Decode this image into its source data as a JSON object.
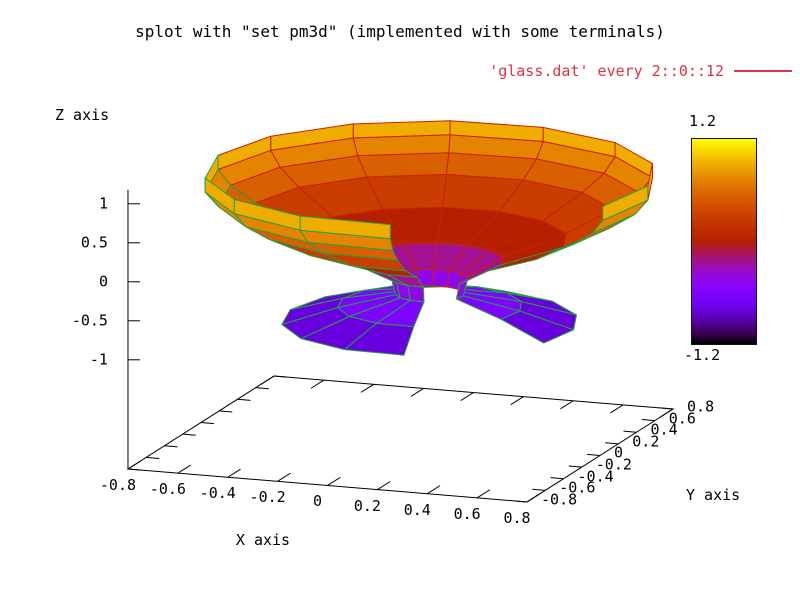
{
  "title": "splot with \"set pm3d\" (implemented with some terminals)",
  "legend": {
    "label": "'glass.dat' every 2::0::12",
    "color": "#dd3344"
  },
  "axes": {
    "x": {
      "label": "X axis",
      "ticks": [
        "-0.8",
        "-0.6",
        "-0.4",
        "-0.2",
        "0",
        "0.2",
        "0.4",
        "0.6",
        "0.8"
      ]
    },
    "y": {
      "label": "Y axis",
      "ticks": [
        "-0.8",
        "-0.6",
        "-0.4",
        "-0.2",
        "0",
        "0.2",
        "0.4",
        "0.6",
        "0.8"
      ]
    },
    "z": {
      "label": "Z axis",
      "ticks": [
        "-1",
        "-0.5",
        "0",
        "0.5",
        "1"
      ]
    }
  },
  "colorbar": {
    "max_label": "1.2",
    "min_label": "-1.2",
    "range": [
      -1.2,
      1.2
    ]
  },
  "chart_data": {
    "type": "surface-3d-pm3d",
    "source_label": "'glass.dat' every 2::0::12",
    "x_range": [
      -0.8,
      0.8
    ],
    "y_range": [
      -0.8,
      0.8
    ],
    "z_tick_range": [
      -1,
      1
    ],
    "color_range": [
      -1.2,
      1.2
    ],
    "palette": "gnuplot rgbformulae 7,5,15: R=sqrt(t), G=t^3, B=sin(2*pi*t)",
    "mesh_line_colors": {
      "top_side": "#cc2200",
      "bottom_side": "#22a044"
    },
    "surface_of_revolution": {
      "center_offset": {
        "x": 0.1,
        "y": 0.05
      },
      "profile_rz": [
        {
          "z": 1.0,
          "r": 0.85
        },
        {
          "z": 0.82,
          "r": 0.85
        },
        {
          "z": 0.63,
          "r": 0.8
        },
        {
          "z": 0.43,
          "r": 0.7
        },
        {
          "z": 0.15,
          "r": 0.52
        },
        {
          "z": -0.12,
          "r": 0.28
        },
        {
          "z": -0.35,
          "r": 0.145
        },
        {
          "z": -0.55,
          "r": 0.13
        },
        {
          "z": -0.7,
          "r": 0.35
        },
        {
          "z": -0.9,
          "r": 0.56
        }
      ],
      "theta_start_deg": -20,
      "theta_step_deg": 25,
      "meridian_count": 13,
      "gap_note": "missing ~60 deg sector facing viewer (front-right), produced by the 'every' filter"
    },
    "view": "gnuplot default 3D view; ground plane at z=-2.4 (ticslevel 0.5), z ticks every 0.5"
  }
}
